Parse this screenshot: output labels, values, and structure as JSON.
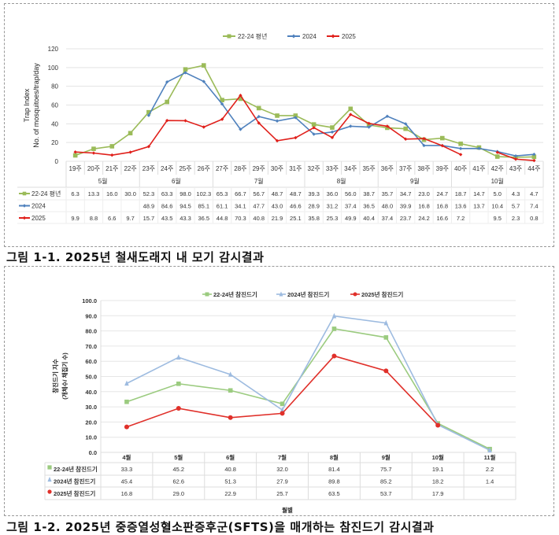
{
  "captions": {
    "fig1": "그림 1-1. 2025년 철새도래지 내 모기 감시결과",
    "fig2": "그림 1-2. 2025년 중증열성혈소판증후군(SFTS)을 매개하는 참진드기 감시결과"
  },
  "chart_data": [
    {
      "type": "line",
      "title": "",
      "ylabel": "Trap Index\nNo. of mosquitoes/trap/day",
      "ylabel_lines": [
        "Trap Index",
        "No. of mosquitoes/trap/day"
      ],
      "xlabel": "",
      "ylim": [
        0,
        120
      ],
      "yticks": [
        0,
        20,
        40,
        60,
        80,
        100,
        120
      ],
      "grid": true,
      "legend_position": "top",
      "categories": [
        "19주",
        "20주",
        "21주",
        "22주",
        "23주",
        "24주",
        "25주",
        "26주",
        "27주",
        "28주",
        "29주",
        "30주",
        "31주",
        "32주",
        "33주",
        "34주",
        "35주",
        "36주",
        "37주",
        "38주",
        "39주",
        "40주",
        "41주",
        "42주",
        "43주",
        "44주"
      ],
      "month_groups": [
        {
          "label": "5월",
          "span": 4
        },
        {
          "label": "6월",
          "span": 4
        },
        {
          "label": "7월",
          "span": 5
        },
        {
          "label": "8월",
          "span": 4
        },
        {
          "label": "9월",
          "span": 4
        },
        {
          "label": "10월",
          "span": 5
        }
      ],
      "series": [
        {
          "name": "22-24 평년",
          "color": "#9bbb59",
          "marker": "square",
          "values": [
            6.3,
            13.3,
            16.0,
            30.0,
            52.3,
            63.3,
            98.0,
            102.3,
            65.3,
            66.7,
            56.7,
            48.7,
            48.7,
            39.3,
            36.0,
            56.0,
            38.7,
            35.7,
            34.7,
            23.0,
            24.7,
            18.7,
            14.7,
            5.0,
            4.3,
            4.7
          ]
        },
        {
          "name": "2024",
          "color": "#4f81bd",
          "marker": "diamond",
          "values": [
            null,
            null,
            null,
            null,
            48.9,
            84.6,
            94.5,
            85.1,
            61.1,
            34.1,
            47.7,
            43.0,
            46.6,
            28.9,
            31.2,
            37.4,
            36.5,
            48.0,
            39.9,
            16.8,
            16.8,
            13.6,
            13.7,
            10.4,
            5.7,
            7.4
          ]
        },
        {
          "name": "2025",
          "color": "#e0201b",
          "marker": "diamond",
          "values": [
            9.9,
            8.8,
            6.6,
            9.7,
            15.7,
            43.5,
            43.3,
            36.5,
            44.8,
            70.3,
            40.8,
            21.9,
            25.1,
            35.8,
            25.3,
            49.9,
            40.4,
            37.4,
            23.7,
            24.2,
            16.6,
            7.2,
            null,
            9.5,
            2.3,
            0.8
          ]
        }
      ]
    },
    {
      "type": "line",
      "title": "",
      "ylabel": "참진드기 지수 (개체수/ 채집기 수)",
      "ylabel_lines": [
        "참진드기 지수",
        "(개체수/ 채집기 수)"
      ],
      "xlabel": "월별",
      "ylim": [
        0,
        100
      ],
      "yticks": [
        "0.0",
        "10.0",
        "20.0",
        "30.0",
        "40.0",
        "50.0",
        "60.0",
        "70.0",
        "80.0",
        "90.0",
        "100.0"
      ],
      "grid": true,
      "legend_position": "top",
      "categories": [
        "4월",
        "5월",
        "6월",
        "7월",
        "8월",
        "9월",
        "10월",
        "11월"
      ],
      "series": [
        {
          "name": "22-24년 참진드기",
          "color": "#9bcb7f",
          "marker": "square",
          "values": [
            33.3,
            45.2,
            40.8,
            32.0,
            81.4,
            75.7,
            19.1,
            2.2
          ]
        },
        {
          "name": "2024년 참진드기",
          "color": "#9dbbe0",
          "marker": "triangle",
          "values": [
            45.4,
            62.6,
            51.3,
            27.9,
            89.8,
            85.2,
            18.2,
            1.4
          ]
        },
        {
          "name": "2025년 참진드기",
          "color": "#e0302a",
          "marker": "circle",
          "values": [
            16.8,
            29.0,
            22.9,
            25.7,
            63.5,
            53.7,
            17.9,
            null
          ]
        }
      ]
    }
  ]
}
